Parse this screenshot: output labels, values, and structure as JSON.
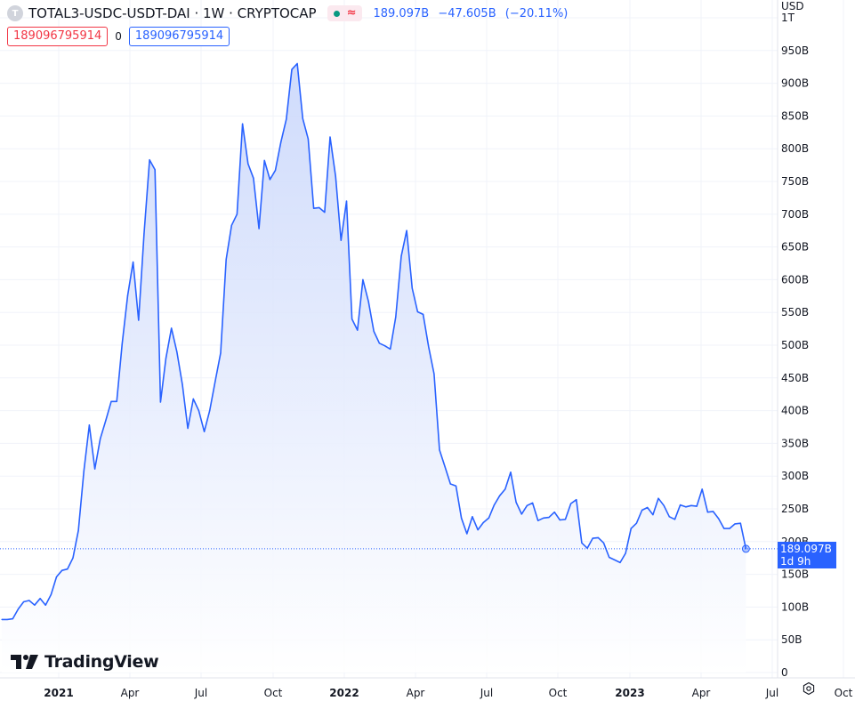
{
  "header": {
    "symbol_icon": "T",
    "title": "TOTAL3-USDC-USDT-DAI · 1W · CRYPTOCAP",
    "market_status_icon": "green-dot-icon",
    "approx_icon": "≈",
    "last": "189.097B",
    "change": "−47.605B",
    "change_pct": "(−20.11%)"
  },
  "inputs": {
    "field1": "189096795914",
    "middle": "0",
    "field2": "189096795914"
  },
  "currency": "USD",
  "price_tag": {
    "value": "189.097B",
    "countdown": "1d 9h"
  },
  "brand": {
    "name": "TradingView"
  },
  "colors": {
    "line": "#2962ff",
    "fill_top": "#c7d5fb",
    "fill_bottom": "#ffffff",
    "grid": "#f0f3fa"
  },
  "chart_data": {
    "type": "area",
    "title": "TOTAL3-USDC-USDT-DAI · 1W · CRYPTOCAP",
    "ylabel": "USD",
    "ylim": [
      0,
      1000
    ],
    "y_unit": "B",
    "y_ticks": [
      "0",
      "50B",
      "100B",
      "150B",
      "200B",
      "250B",
      "300B",
      "350B",
      "400B",
      "450B",
      "500B",
      "550B",
      "600B",
      "650B",
      "700B",
      "750B",
      "800B",
      "850B",
      "900B",
      "950B",
      "1T"
    ],
    "x_ticks": [
      "2021",
      "Apr",
      "Jul",
      "Oct",
      "2022",
      "Apr",
      "Jul",
      "Oct",
      "2023",
      "Apr",
      "Jul",
      "Oct"
    ],
    "x_tick_years": [
      "2021",
      "2022",
      "2023"
    ],
    "series": [
      {
        "values": [
          81,
          81,
          82,
          97,
          108,
          110,
          103,
          113,
          103,
          119,
          146,
          156,
          158,
          175,
          217,
          308,
          378,
          311,
          357,
          385,
          414,
          414,
          502,
          576,
          627,
          538,
          670,
          783,
          768,
          413,
          480,
          526,
          490,
          440,
          373,
          418,
          400,
          368,
          400,
          445,
          488,
          631,
          683,
          700,
          838,
          777,
          755,
          678,
          782,
          753,
          767,
          810,
          845,
          921,
          930,
          846,
          815,
          709,
          710,
          703,
          818,
          758,
          660,
          720,
          540,
          523,
          600,
          567,
          521,
          503,
          499,
          494,
          543,
          636,
          675,
          587,
          551,
          547,
          498,
          456,
          340,
          314,
          288,
          285,
          236,
          212,
          238,
          218,
          229,
          236,
          256,
          270,
          280,
          306,
          260,
          242,
          255,
          259,
          232,
          236,
          237,
          245,
          233,
          234,
          258,
          264,
          198,
          190,
          205,
          206,
          198,
          176,
          172,
          168,
          182,
          220,
          228,
          248,
          252,
          241,
          266,
          255,
          238,
          234,
          256,
          253,
          255,
          254,
          280,
          245,
          246,
          235,
          220,
          220,
          227,
          228,
          189
        ]
      }
    ]
  }
}
